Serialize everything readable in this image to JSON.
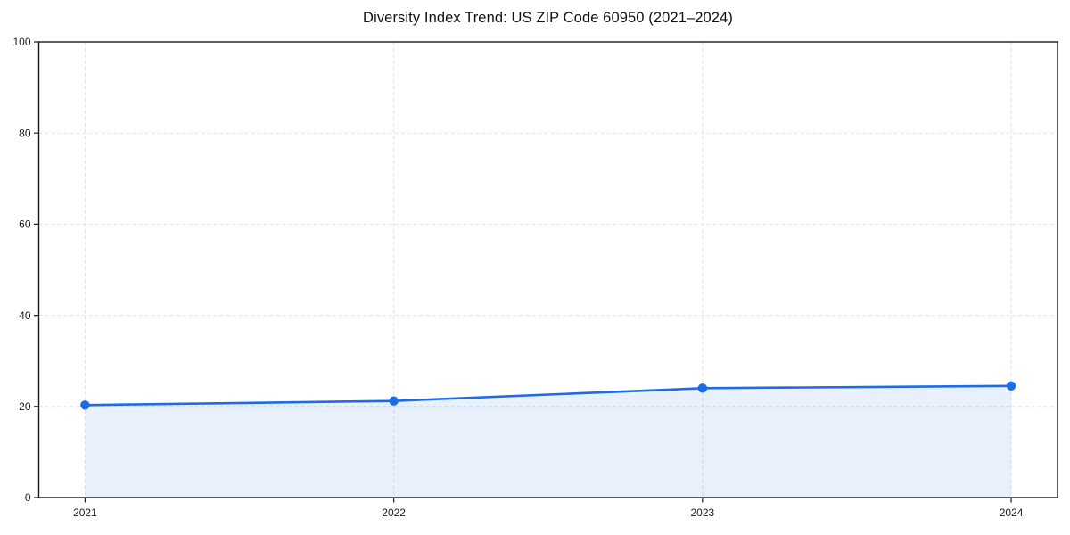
{
  "chart_data": {
    "type": "area",
    "title": "Diversity Index Trend: US ZIP Code 60950 (2021–2024)",
    "x": [
      2021,
      2022,
      2023,
      2024
    ],
    "x_tick_labels": [
      "2021",
      "2022",
      "2023",
      "2024"
    ],
    "series": [
      {
        "name": "Diversity Index",
        "values": [
          20.3,
          21.2,
          24.0,
          24.5
        ]
      }
    ],
    "xlabel": "",
    "ylabel": "",
    "xlim": [
      2020.85,
      2024.15
    ],
    "ylim": [
      0,
      100
    ],
    "y_ticks": [
      0,
      20,
      40,
      60,
      80,
      100
    ],
    "y_tick_labels": [
      "0",
      "20",
      "40",
      "60",
      "80",
      "100"
    ],
    "grid": "dashed",
    "legend": "none",
    "colors": {
      "line": "#1b6ce5",
      "marker": "#1b6ce5",
      "area_fill": "rgba(27,108,229,0.10)",
      "grid": "#e2e2e2",
      "spine": "#1a1a1a",
      "text": "#1a1a1a",
      "background": "#ffffff"
    }
  }
}
